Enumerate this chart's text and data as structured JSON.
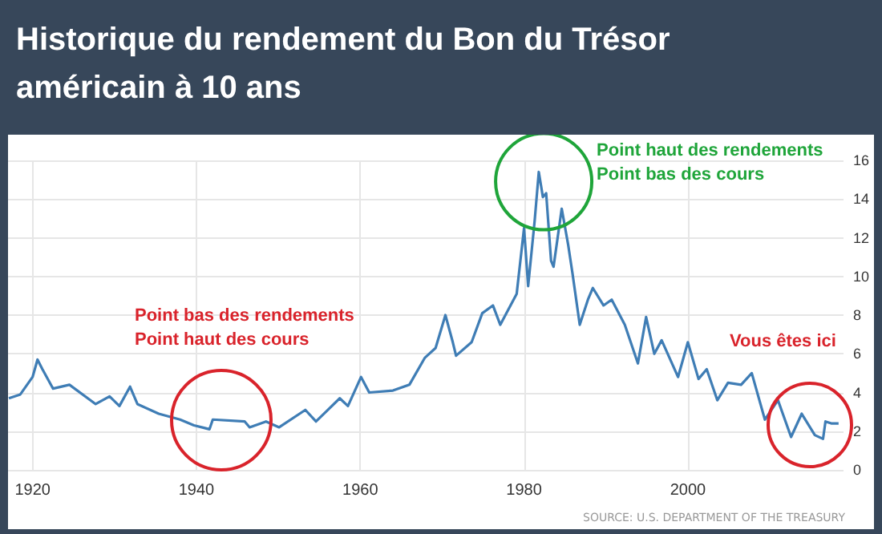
{
  "chart_data": {
    "type": "line",
    "title": "Historique du rendement du Bon du Trésor américain à 10 ans",
    "x": [
      1917.1,
      1918.5,
      1920,
      1920.6,
      1921.2,
      1922.5,
      1924.5,
      1927.7,
      1929.4,
      1930.6,
      1931.9,
      1932.8,
      1935.4,
      1938,
      1939.7,
      1941.6,
      1942,
      1945.9,
      1946.5,
      1948.5,
      1950.1,
      1953.3,
      1954.6,
      1957.5,
      1958.5,
      1960.1,
      1961.1,
      1964,
      1966,
      1967.9,
      1969.2,
      1970.4,
      1971.3,
      1971.7,
      1973.6,
      1974.9,
      1976.2,
      1977.1,
      1979.1,
      1980,
      1980.5,
      1981.3,
      1981.8,
      1982.3,
      1982.7,
      1983.3,
      1983.6,
      1984.6,
      1985.4,
      1985.9,
      1986.8,
      1987.8,
      1988.4,
      1989.7,
      1990.7,
      1992.3,
      1993.9,
      1994.9,
      1995.9,
      1996.8,
      1998.8,
      2000,
      2001.3,
      2002.3,
      2003.6,
      2004.9,
      2006.5,
      2007.8,
      2009.4,
      2011,
      2012.6,
      2013.9,
      2015.5,
      2016.5,
      2016.8,
      2017.5,
      2018.4
    ],
    "series": [
      {
        "color": "#3f7db5",
        "values": [
          3.7,
          3.9,
          4.8,
          5.7,
          5.2,
          4.2,
          4.4,
          3.4,
          3.8,
          3.3,
          4.3,
          3.4,
          2.9,
          2.6,
          2.3,
          2.1,
          2.6,
          2.5,
          2.2,
          2.5,
          2.2,
          3.1,
          2.5,
          3.7,
          3.3,
          4.8,
          4.0,
          4.1,
          4.4,
          5.8,
          6.3,
          8.0,
          6.6,
          5.9,
          6.6,
          8.1,
          8.5,
          7.5,
          9.1,
          12.5,
          9.5,
          12.9,
          15.4,
          14.1,
          14.3,
          10.8,
          10.5,
          13.5,
          11.6,
          10.2,
          7.5,
          8.8,
          9.4,
          8.5,
          8.8,
          7.5,
          5.5,
          7.9,
          6.0,
          6.7,
          4.8,
          6.6,
          4.7,
          5.2,
          3.6,
          4.5,
          4.4,
          5.0,
          2.6,
          3.6,
          1.7,
          2.9,
          1.8,
          1.6,
          2.5,
          2.4,
          2.4
        ]
      }
    ],
    "xlim": [
      1917,
      2019
    ],
    "xticks": [
      1920,
      1940,
      1960,
      1980,
      2000
    ],
    "ylim": [
      0,
      16
    ],
    "yticks": [
      0,
      2,
      4,
      6,
      8,
      10,
      12,
      14,
      16
    ],
    "grid": true,
    "marker": "none",
    "line_style": "solid",
    "annotations": [
      "Point bas des rendements\nPoint haut des cours",
      {
        "text": "Point haut des rendements\nPoint bas des cours",
        "x": 1982.4,
        "y": 14.9
      },
      "Vous êtes ici",
      "SOURCE: U.S. DEPARTMENT OF THE TREASURY"
    ]
  }
}
